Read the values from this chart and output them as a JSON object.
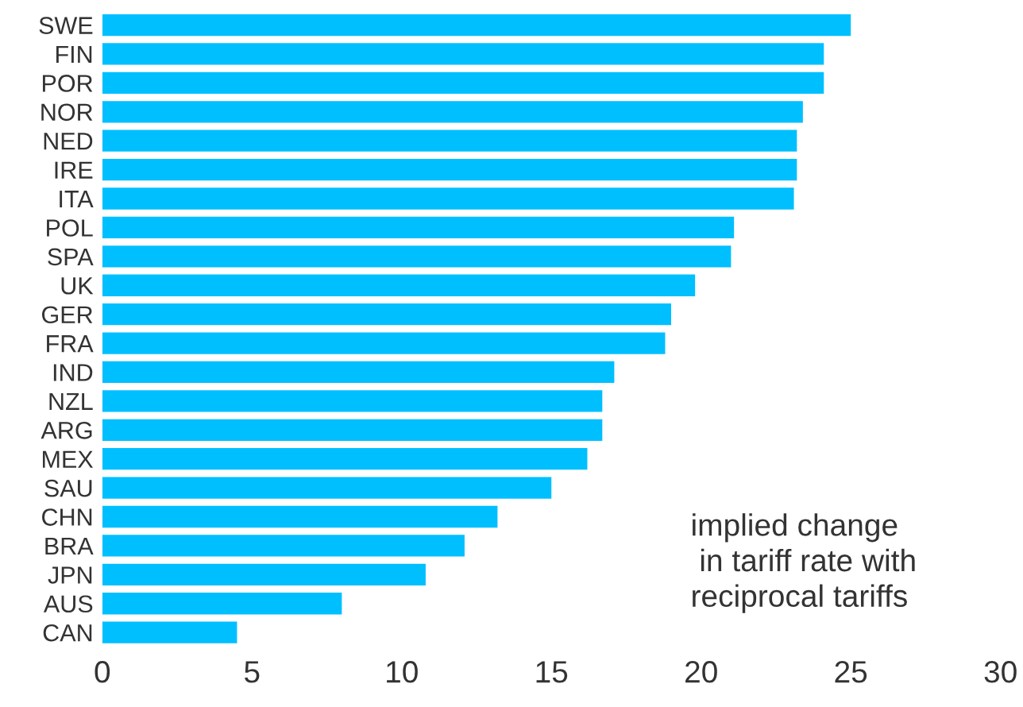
{
  "chart_data": {
    "type": "bar",
    "orientation": "horizontal",
    "categories": [
      "SWE",
      "FIN",
      "POR",
      "NOR",
      "NED",
      "IRE",
      "ITA",
      "POL",
      "SPA",
      "UK",
      "GER",
      "FRA",
      "IND",
      "NZL",
      "ARG",
      "MEX",
      "SAU",
      "CHN",
      "BRA",
      "JPN",
      "AUS",
      "CAN"
    ],
    "values": [
      25.0,
      24.1,
      24.1,
      23.4,
      23.2,
      23.2,
      23.1,
      21.1,
      21.0,
      19.8,
      19.0,
      18.8,
      17.1,
      16.7,
      16.7,
      16.2,
      15.0,
      13.2,
      12.1,
      10.8,
      8.0,
      4.5
    ],
    "color": "#00bfff",
    "xlim": [
      0,
      30
    ],
    "xticks": [
      0,
      5,
      10,
      15,
      20,
      25,
      30
    ],
    "annotations": [
      "implied change\n in tariff rate with\nreciprocal tariffs"
    ],
    "grid": false,
    "legend": false
  }
}
